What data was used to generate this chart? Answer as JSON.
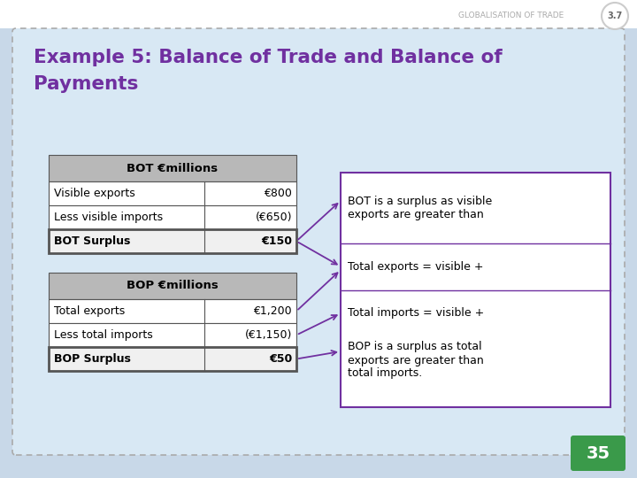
{
  "bg_color": "#c8d8e8",
  "slide_bg": "#d8e8f4",
  "title_line1": "Example 5: Balance of Trade and Balance of",
  "title_line2": "Payments",
  "title_color": "#7030a0",
  "page_label": "GLOBALISATION OF TRADE",
  "page_num": "3.7",
  "slide_num": "35",
  "header_bg": "#b0b0b0",
  "bot_table": {
    "header": "BOT €millions",
    "rows": [
      [
        "Visible exports",
        "€800"
      ],
      [
        "Less visible imports",
        "(€650)"
      ],
      [
        "BOT Surplus",
        "€150"
      ]
    ]
  },
  "bop_table": {
    "header": "BOP €millions",
    "rows": [
      [
        "Total exports",
        "€1,200"
      ],
      [
        "Less total imports",
        "(€1,150)"
      ],
      [
        "BOP Surplus",
        "€50"
      ]
    ]
  },
  "rbox_texts": [
    "BOT is a surplus as visible\nexports are greater than",
    "Total exports = visible +",
    "Total imports = visible +",
    "BOP is a surplus as total\nexports are greater than\ntotal imports."
  ],
  "arrow_color": "#7030a0",
  "box_border_color": "#7030a0",
  "badge_color": "#3a9a4a"
}
